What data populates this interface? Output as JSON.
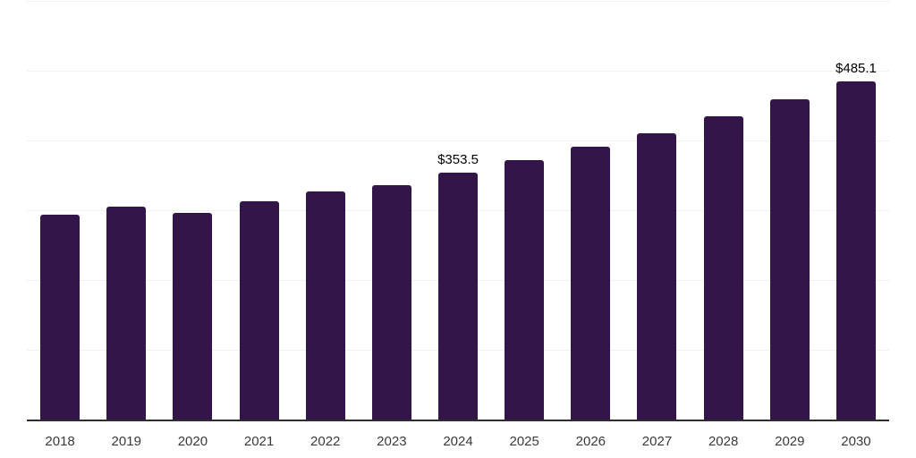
{
  "chart_data": {
    "type": "bar",
    "title": "",
    "xlabel": "",
    "ylabel": "",
    "categories": [
      "2018",
      "2019",
      "2020",
      "2021",
      "2022",
      "2023",
      "2024",
      "2025",
      "2026",
      "2027",
      "2028",
      "2029",
      "2030"
    ],
    "values": [
      293,
      305,
      296,
      312.5,
      327,
      335.5,
      353.5,
      371.5,
      391,
      410.5,
      434.5,
      459,
      485.1
    ],
    "data_labels": [
      "",
      "",
      "",
      "",
      "",
      "",
      "$353.5",
      "",
      "",
      "",
      "",
      "",
      "$485.1"
    ],
    "ylim": [
      0,
      600
    ],
    "gridline_values": [
      100,
      200,
      300,
      400,
      500,
      600
    ],
    "grid": "horizontal",
    "legend": "none",
    "colors": {
      "bar": "#33154a",
      "gridline": "#f1f1f4",
      "axis_line": "#2e2e2e",
      "data_label": "#000000",
      "tick_label": "#3a3a3a",
      "background": "#ffffff"
    }
  }
}
